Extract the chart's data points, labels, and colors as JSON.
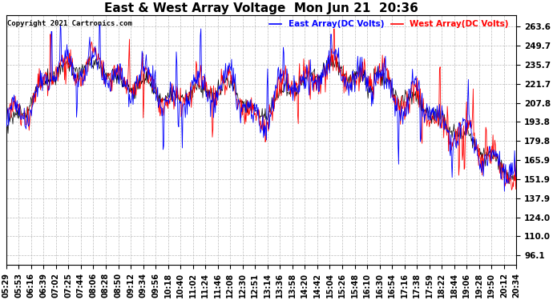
{
  "title": "East & West Array Voltage  Mon Jun 21  20:36",
  "copyright": "Copyright 2021 Cartronics.com",
  "legend_east": "East Array(DC Volts)",
  "legend_west": "West Array(DC Volts)",
  "color_east": "blue",
  "color_west": "red",
  "color_black": "black",
  "yticks": [
    96.1,
    110.0,
    124.0,
    137.9,
    151.9,
    165.9,
    179.8,
    193.8,
    207.8,
    221.7,
    235.7,
    249.7,
    263.6
  ],
  "ymin": 89.0,
  "ymax": 272.0,
  "xtick_labels": [
    "05:29",
    "05:53",
    "06:16",
    "06:39",
    "07:02",
    "07:25",
    "07:44",
    "08:06",
    "08:28",
    "08:50",
    "09:12",
    "09:34",
    "09:56",
    "10:18",
    "10:40",
    "11:02",
    "11:24",
    "11:46",
    "12:08",
    "12:30",
    "12:51",
    "13:14",
    "13:36",
    "13:58",
    "14:20",
    "14:42",
    "15:04",
    "15:26",
    "15:48",
    "16:10",
    "16:30",
    "16:54",
    "17:16",
    "17:38",
    "17:59",
    "18:22",
    "18:44",
    "19:06",
    "19:28",
    "19:50",
    "20:12",
    "20:34"
  ],
  "background_color": "#ffffff",
  "grid_color": "#bbbbbb",
  "title_fontsize": 11,
  "label_fontsize": 7.5
}
